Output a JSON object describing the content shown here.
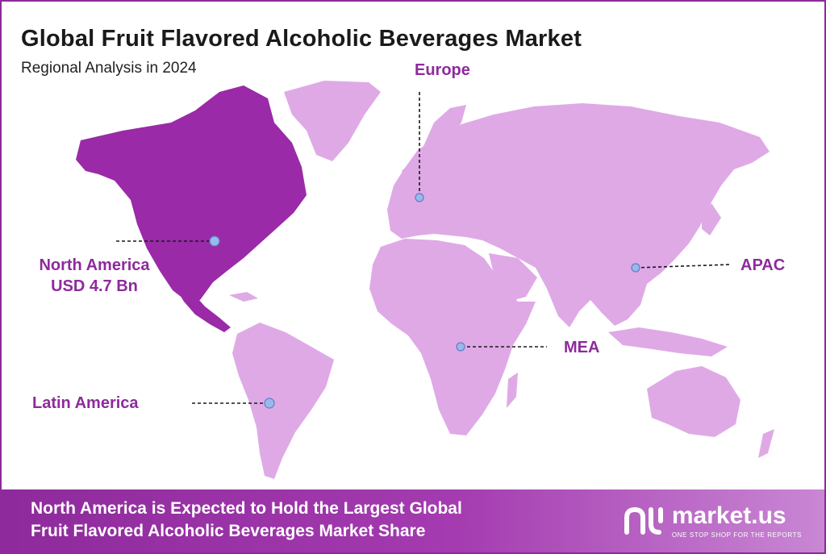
{
  "header": {
    "title": "Global Fruit Flavored Alcoholic Beverages Market",
    "subtitle": "Regional Analysis in 2024"
  },
  "regions": [
    {
      "name": "Europe",
      "value": "",
      "highlight": false
    },
    {
      "name": "North America",
      "value": "USD 4.7 Bn",
      "highlight": true
    },
    {
      "name": "Latin America",
      "value": "",
      "highlight": false
    },
    {
      "name": "MEA",
      "value": "",
      "highlight": false
    },
    {
      "name": "APAC",
      "value": "",
      "highlight": false
    }
  ],
  "colors": {
    "highlight_region": "#9a2aa8",
    "other_regions": "#dfa9e6",
    "accent": "#8e2a9c",
    "marker": "#9ab8ee"
  },
  "banner": {
    "line1": "North America is Expected to Hold the Largest Global",
    "line2": "Fruit Flavored Alcoholic Beverages Market Share"
  },
  "logo": {
    "name": "market.us",
    "tagline": "ONE STOP SHOP FOR THE REPORTS"
  }
}
